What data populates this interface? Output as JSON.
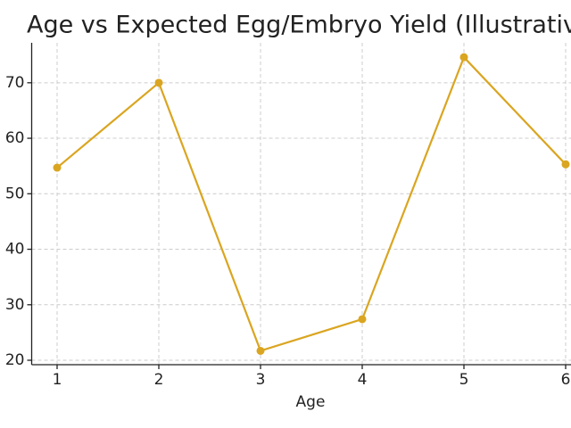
{
  "chart_data": {
    "type": "line",
    "title": "Age vs Expected Egg/Embryo Yield (Illustrativ",
    "x_label": "Age",
    "x": [
      1,
      2,
      3,
      4,
      5,
      6
    ],
    "series": [
      {
        "color": "#daa520",
        "values": [
          54.7,
          70,
          21.7,
          27.4,
          74.6,
          55.3
        ]
      }
    ],
    "xlim": [
      0.75,
      6.25
    ],
    "xticks": [
      1,
      2,
      3,
      4,
      5,
      6
    ],
    "ylim": [
      19.2,
      77.2
    ],
    "yticks": [
      20,
      30,
      40,
      50,
      60,
      70
    ],
    "grid": true
  }
}
